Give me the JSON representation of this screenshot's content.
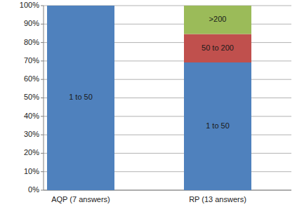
{
  "chart_data": {
    "type": "bar",
    "stacked": true,
    "grid": true,
    "data_labels": false,
    "categories": [
      "AQP (7 answers)",
      "RP (13 answers)"
    ],
    "series": [
      {
        "name": "1 to 50",
        "color": "#4f81bd",
        "values": [
          100,
          69.2
        ]
      },
      {
        "name": "50 to 200",
        "color": "#c0504d",
        "values": [
          0,
          15.4
        ]
      },
      {
        "name": ">200",
        "color": "#9bbb59",
        "values": [
          0,
          15.4
        ]
      }
    ],
    "ylim": [
      0,
      100
    ],
    "yticks": [
      {
        "value": 0,
        "label": "0%"
      },
      {
        "value": 10,
        "label": "10%"
      },
      {
        "value": 20,
        "label": "20%"
      },
      {
        "value": 30,
        "label": "30%"
      },
      {
        "value": 40,
        "label": "40%"
      },
      {
        "value": 50,
        "label": "50%"
      },
      {
        "value": 60,
        "label": "60%"
      },
      {
        "value": 70,
        "label": "70%"
      },
      {
        "value": 80,
        "label": "80%"
      },
      {
        "value": 90,
        "label": "90%"
      },
      {
        "value": 100,
        "label": "100%"
      }
    ]
  }
}
